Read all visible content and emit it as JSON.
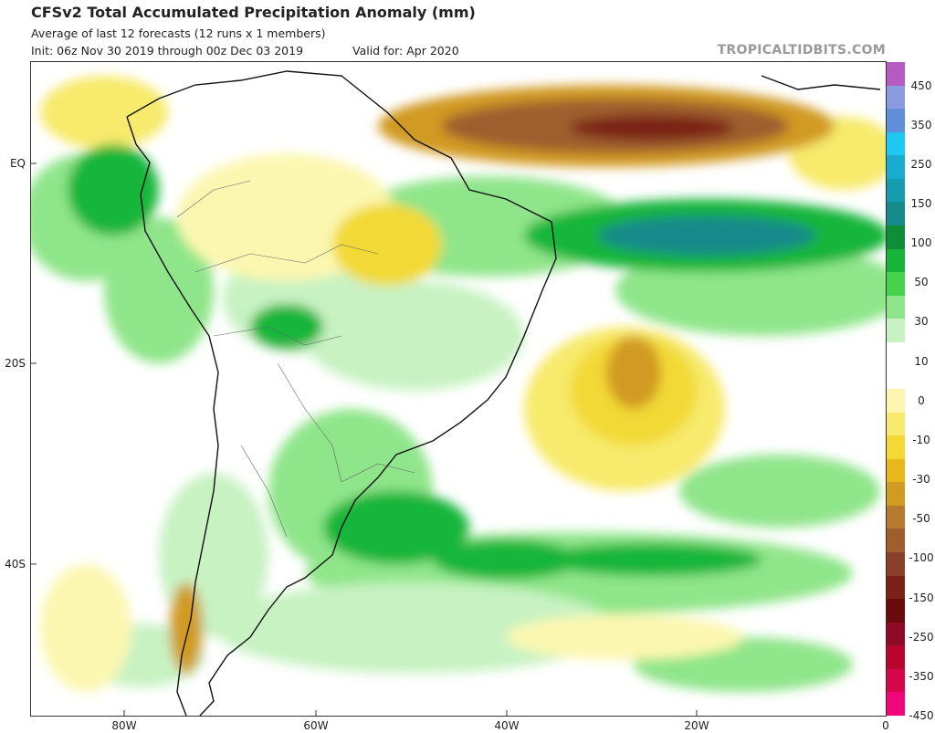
{
  "header": {
    "title": "CFSv2 Total Accumulated Precipitation Anomaly (mm)",
    "subtitle": "Average of last 12 forecasts (12 runs x 1 members)",
    "init": "Init: 06z Nov 30 2019 through 00z Dec 03 2019",
    "valid": "Valid for: Apr 2020",
    "brand": "TROPICALTIDBITS.COM"
  },
  "axes": {
    "lat_labels": [
      "EQ",
      "20S",
      "40S"
    ],
    "lon_labels": [
      "80W",
      "60W",
      "40W",
      "20W",
      "0"
    ]
  },
  "colorbar": {
    "labels": [
      "450",
      "350",
      "250",
      "150",
      "100",
      "50",
      "30",
      "10",
      "0",
      "-10",
      "-30",
      "-50",
      "-100",
      "-150",
      "-250",
      "-350",
      "-450"
    ],
    "colors": [
      "#b65bbf",
      "#8a9bdf",
      "#5f8fd8",
      "#1ec8f0",
      "#1aabd0",
      "#169cae",
      "#148a8a",
      "#0f8e3a",
      "#17b53a",
      "#46d24c",
      "#8fe58a",
      "#c8f2c2",
      "#ffffff",
      "#ffffff",
      "#fbf7b0",
      "#f7ea6c",
      "#f2d936",
      "#e6b81a",
      "#d19a20",
      "#b47a2e",
      "#9e5e2e",
      "#8a4028",
      "#7a2218",
      "#6b0a0a",
      "#8f0a25",
      "#b8062e",
      "#d6064a",
      "#f0067a"
    ]
  }
}
